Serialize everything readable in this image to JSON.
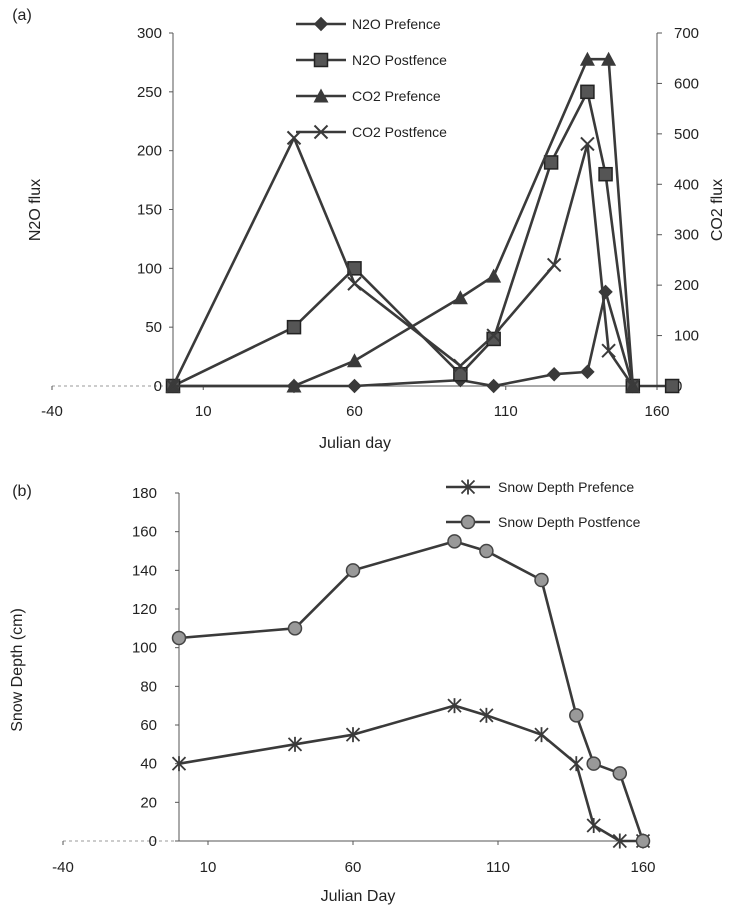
{
  "chart_data": [
    {
      "type": "line",
      "panel_label": "(a)",
      "xlabel": "Julian day",
      "ylabel_left": "N2O flux",
      "ylabel_right": "CO2 flux",
      "xlim": [
        -40,
        160
      ],
      "xticks": [
        "-40",
        "10",
        "60",
        "110",
        "160"
      ],
      "ylim_left": [
        0,
        300
      ],
      "yticks_left": [
        "0",
        "50",
        "100",
        "150",
        "200",
        "250",
        "300"
      ],
      "ylim_right": [
        0,
        700
      ],
      "yticks_right": [
        "0",
        "100",
        "200",
        "300",
        "400",
        "500",
        "600",
        "700"
      ],
      "legend_position": "top-center",
      "series": [
        {
          "name": "N2O Prefence",
          "axis": "left",
          "marker": "diamond",
          "x": [
            0,
            40,
            60,
            95,
            106,
            126,
            137,
            143,
            152
          ],
          "y": [
            0,
            0,
            0,
            5,
            0,
            10,
            12,
            80,
            0
          ]
        },
        {
          "name": "N2O Postfence",
          "axis": "left",
          "marker": "square",
          "x": [
            0,
            40,
            60,
            95,
            106,
            125,
            137,
            143,
            152,
            165
          ],
          "y": [
            0,
            50,
            100,
            10,
            40,
            190,
            250,
            180,
            0,
            0
          ]
        },
        {
          "name": "CO2 Prefence",
          "axis": "right",
          "marker": "triangle",
          "x": [
            0,
            40,
            60,
            95,
            106,
            137,
            144,
            152
          ],
          "y": [
            0,
            0,
            50,
            175,
            218,
            648,
            648,
            0
          ]
        },
        {
          "name": "CO2 Postfence",
          "axis": "right",
          "marker": "x",
          "x": [
            0,
            40,
            60,
            95,
            106,
            126,
            137,
            144,
            152
          ],
          "y": [
            0,
            492,
            203,
            40,
            100,
            240,
            480,
            70,
            0
          ]
        }
      ]
    },
    {
      "type": "line",
      "panel_label": "(b)",
      "xlabel": "Julian Day",
      "ylabel": "Snow Depth (cm)",
      "xlim": [
        -40,
        160
      ],
      "xticks": [
        "-40",
        "10",
        "60",
        "110",
        "160"
      ],
      "ylim": [
        0,
        180
      ],
      "yticks": [
        "0",
        "20",
        "40",
        "60",
        "80",
        "100",
        "120",
        "140",
        "160",
        "180"
      ],
      "legend_position": "top-right",
      "series": [
        {
          "name": "Snow Depth Prefence",
          "marker": "asterisk",
          "x": [
            0,
            40,
            60,
            95,
            106,
            125,
            137,
            143,
            152,
            160
          ],
          "y": [
            40,
            50,
            55,
            70,
            65,
            55,
            40,
            8,
            0,
            0
          ]
        },
        {
          "name": "Snow Depth Postfence",
          "marker": "circle",
          "x": [
            0,
            40,
            60,
            95,
            106,
            125,
            137,
            143,
            152,
            160
          ],
          "y": [
            105,
            110,
            140,
            155,
            150,
            135,
            65,
            40,
            35,
            0
          ]
        }
      ]
    }
  ]
}
